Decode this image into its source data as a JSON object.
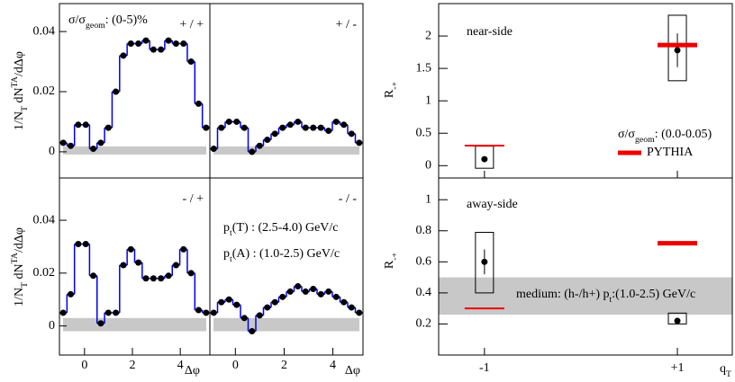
{
  "chart_data": [
    {
      "type": "scatter",
      "step": true,
      "panel_label": "+ / +",
      "annotations": [
        [
          {
            "text": "σ/σ"
          },
          {
            "text": "geom",
            "shift": "sub"
          },
          {
            "text": ": (0-5)%"
          }
        ]
      ],
      "ylabel": [
        {
          "text": "1/N"
        },
        {
          "text": "T",
          "shift": "sub"
        },
        {
          "text": " dN"
        },
        {
          "text": "TA",
          "shift": "super"
        },
        {
          "text": "/dΔφ"
        }
      ],
      "x": [
        -0.89,
        -0.576,
        -0.262,
        0.052,
        0.367,
        0.681,
        0.995,
        1.309,
        1.623,
        1.937,
        2.251,
        2.566,
        2.88,
        3.194,
        3.508,
        3.822,
        4.136,
        4.451,
        4.765,
        5.079
      ],
      "values": [
        0.003,
        0.002,
        0.009,
        0.009,
        0.001,
        0.003,
        0.008,
        0.02,
        0.032,
        0.036,
        0.036,
        0.037,
        0.034,
        0.034,
        0.037,
        0.036,
        0.036,
        0.03,
        0.016,
        0.008
      ],
      "color": "#0000ee",
      "marker_color": "#000000",
      "band": [
        -0.0009,
        0.0018
      ],
      "band_color": "#c8c8c8",
      "xlim": [
        -1.047,
        5.236
      ],
      "ylim": [
        -0.0087,
        0.0493
      ],
      "yticks": [
        0,
        0.02,
        0.04
      ]
    },
    {
      "type": "scatter",
      "step": true,
      "panel_label": "+ / -",
      "x": [
        -0.89,
        -0.576,
        -0.262,
        0.052,
        0.367,
        0.681,
        0.995,
        1.309,
        1.623,
        1.937,
        2.251,
        2.566,
        2.88,
        3.194,
        3.508,
        3.822,
        4.136,
        4.451,
        4.765,
        5.079
      ],
      "values": [
        0.001,
        0.008,
        0.01,
        0.01,
        0.008,
        0.0,
        0.002,
        0.004,
        0.006,
        0.008,
        0.009,
        0.01,
        0.008,
        0.008,
        0.008,
        0.007,
        0.01,
        0.009,
        0.006,
        0.003
      ],
      "color": "#0000ee",
      "marker_color": "#000000",
      "band": [
        -0.0009,
        0.0018
      ],
      "band_color": "#c8c8c8",
      "xlim": [
        -1.047,
        5.236
      ],
      "ylim": [
        -0.0087,
        0.0493
      ]
    },
    {
      "type": "scatter",
      "step": true,
      "panel_label": "- / +",
      "ylabel": [
        {
          "text": "1/N"
        },
        {
          "text": "T",
          "shift": "sub"
        },
        {
          "text": " dN"
        },
        {
          "text": "TA",
          "shift": "super"
        },
        {
          "text": "/dΔφ"
        }
      ],
      "xlabel": "Δφ",
      "x": [
        -0.89,
        -0.576,
        -0.262,
        0.052,
        0.367,
        0.681,
        0.995,
        1.309,
        1.623,
        1.937,
        2.251,
        2.566,
        2.88,
        3.194,
        3.508,
        3.822,
        4.136,
        4.451,
        4.765,
        5.079
      ],
      "values": [
        0.005,
        0.012,
        0.031,
        0.031,
        0.019,
        0.001,
        0.005,
        0.005,
        0.023,
        0.029,
        0.024,
        0.018,
        0.018,
        0.018,
        0.019,
        0.023,
        0.029,
        0.02,
        0.006,
        0.005
      ],
      "color": "#0000ee",
      "marker_color": "#000000",
      "band": [
        -0.002,
        0.003
      ],
      "band_color": "#c8c8c8",
      "xlim": [
        -1.047,
        5.236
      ],
      "ylim": [
        -0.011,
        0.056
      ],
      "xticks": [
        0,
        2,
        4
      ],
      "yticks": [
        0,
        0.02,
        0.04
      ]
    },
    {
      "type": "scatter",
      "step": true,
      "panel_label": "- / -",
      "annotations": [
        [
          {
            "text": "p"
          },
          {
            "text": "t",
            "shift": "sub"
          },
          {
            "text": "(T) : (2.5-4.0) GeV/c"
          }
        ],
        [
          {
            "text": "p"
          },
          {
            "text": "t",
            "shift": "sub"
          },
          {
            "text": "(A) : (1.0-2.5) GeV/c"
          }
        ]
      ],
      "xlabel": "Δφ",
      "x": [
        -0.89,
        -0.576,
        -0.262,
        0.052,
        0.367,
        0.681,
        0.995,
        1.309,
        1.623,
        1.937,
        2.251,
        2.566,
        2.88,
        3.194,
        3.508,
        3.822,
        4.136,
        4.451,
        4.765,
        5.079
      ],
      "values": [
        0.005,
        0.009,
        0.01,
        0.008,
        0.003,
        -0.002,
        0.004,
        0.007,
        0.009,
        0.011,
        0.013,
        0.015,
        0.013,
        0.014,
        0.012,
        0.013,
        0.011,
        0.009,
        0.007,
        0.005
      ],
      "color": "#0000ee",
      "marker_color": "#000000",
      "band": [
        -0.002,
        0.003
      ],
      "band_color": "#c8c8c8",
      "xlim": [
        -1.047,
        5.236
      ],
      "ylim": [
        -0.011,
        0.056
      ],
      "xticks": [
        0,
        2,
        4
      ]
    },
    {
      "type": "errorbar",
      "panel_label": "near-side",
      "annotations": [
        [
          {
            "text": "σ/σ"
          },
          {
            "text": "geom",
            "shift": "sub"
          },
          {
            "text": ": (0.0-0.05)"
          }
        ]
      ],
      "ylabel": [
        {
          "text": "R"
        },
        {
          "text": "-+",
          "shift": "sub"
        }
      ],
      "categories": [
        null,
        null
      ],
      "series": [
        {
          "color": "#000000",
          "values": [
            0.1,
            1.78
          ],
          "errors": [
            0.04,
            0.26
          ],
          "box_low": [
            -0.04,
            1.31
          ],
          "box_high": [
            0.3,
            2.32
          ]
        },
        {
          "name": "PYTHIA",
          "color": "#ee0000",
          "values": [
            0.31,
            1.86
          ]
        }
      ],
      "legend": "right",
      "ylim": [
        -0.19,
        2.5
      ],
      "yticks": [
        0,
        0.5,
        1,
        1.5,
        2
      ]
    },
    {
      "type": "errorbar",
      "panel_label": "away-side",
      "annotations": [
        [
          {
            "text": "medium: (h-/h+) p"
          },
          {
            "text": "t",
            "shift": "sub"
          },
          {
            "text": ":(1.0-2.5) GeV/c"
          }
        ]
      ],
      "ylabel": [
        {
          "text": "R"
        },
        {
          "text": "-+",
          "shift": "sub"
        }
      ],
      "xlabel": [
        {
          "text": "q"
        },
        {
          "text": "T",
          "shift": "sub"
        }
      ],
      "categories": [
        "-1",
        "+1"
      ],
      "series": [
        {
          "color": "#000000",
          "values": [
            0.6,
            0.22
          ],
          "errors": [
            0.08,
            0.02
          ],
          "box_low": [
            0.4,
            0.2
          ],
          "box_high": [
            0.79,
            0.27
          ]
        },
        {
          "color": "#ee0000",
          "values": [
            0.3,
            0.72
          ]
        }
      ],
      "band": [
        0.26,
        0.5
      ],
      "band_color": "#c8c8c8",
      "ylim": [
        0.0,
        1.14
      ],
      "yticks": [
        0.2,
        0.4,
        0.6,
        0.8,
        1
      ]
    }
  ]
}
